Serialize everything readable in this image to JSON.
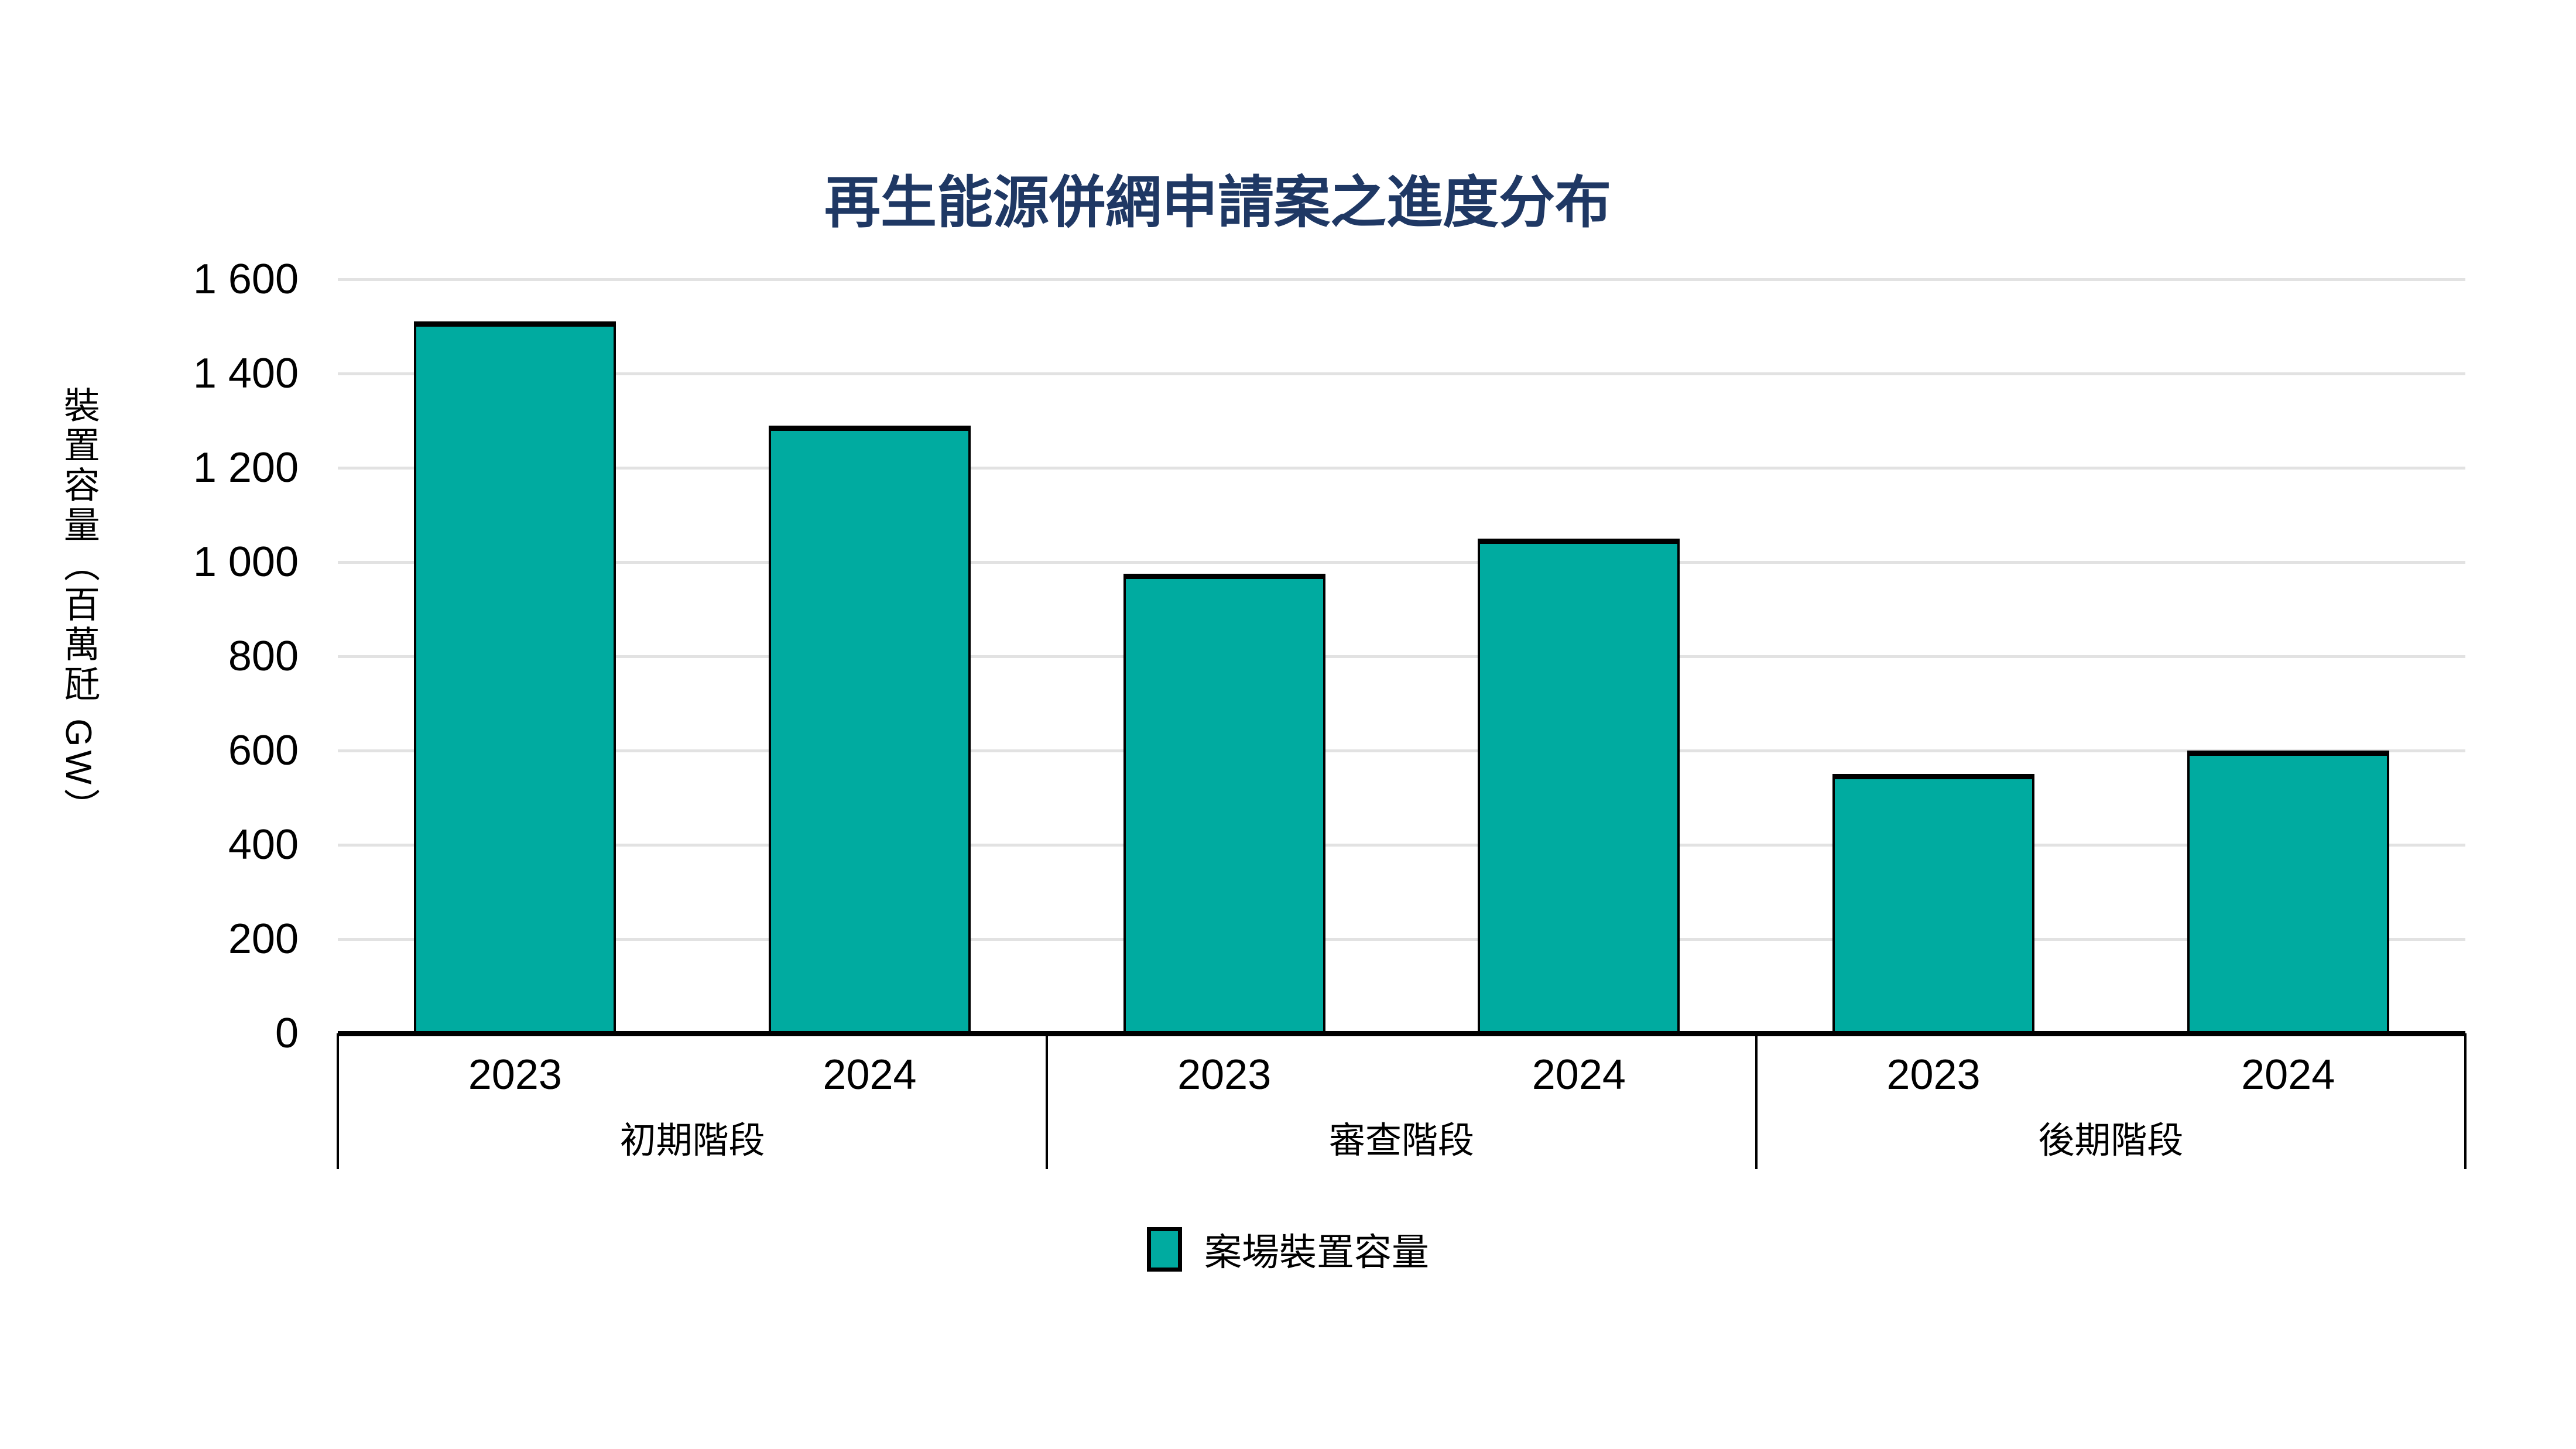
{
  "title": "再生能源併網申請案之進度分布",
  "y_axis": {
    "label": "裝置容量（百萬瓩 GW）"
  },
  "legend": {
    "label": "案場裝置容量",
    "swatch_color": "#00ABA0"
  },
  "colors": {
    "bar_fill": "#00ABA0",
    "bar_border": "#000000",
    "title": "#1F3864",
    "gridline": "#E2E2E2",
    "axis": "#000000"
  },
  "chart_data": {
    "type": "bar",
    "title": "再生能源併網申請案之進度分布",
    "xlabel": "",
    "ylabel": "裝置容量（百萬瓩 GW）",
    "ylim": [
      0,
      1600
    ],
    "ytick_interval": 200,
    "grid": true,
    "legend_position": "bottom",
    "series_name": "案場裝置容量",
    "bar_color": "#00ABA0",
    "groups": [
      {
        "label": "初期階段",
        "categories": [
          "2023",
          "2024"
        ],
        "values": [
          1510,
          1290
        ]
      },
      {
        "label": "審查階段",
        "categories": [
          "2023",
          "2024"
        ],
        "values": [
          975,
          1050
        ]
      },
      {
        "label": "後期階段",
        "categories": [
          "2023",
          "2024"
        ],
        "values": [
          550,
          600
        ]
      }
    ]
  }
}
